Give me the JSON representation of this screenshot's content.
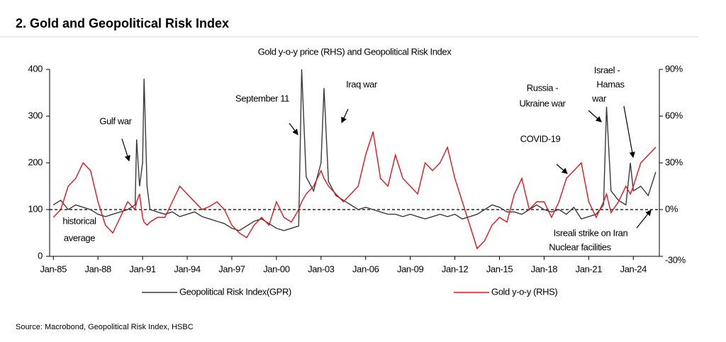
{
  "chart_data": {
    "type": "line",
    "heading": "2. Gold and Geopolitical Risk Index",
    "title": "Gold y-o-y price (RHS) and Geopolitical Risk Index",
    "source": "Source: Macrobond, Geopolitical Risk Index, HSBC",
    "x": [
      1985,
      1985.5,
      1986,
      1986.5,
      1987,
      1987.5,
      1988,
      1988.5,
      1989,
      1989.5,
      1990,
      1990.5,
      1990.6,
      1990.8,
      1991.0,
      1991.1,
      1991.3,
      1991.5,
      1992,
      1992.5,
      1993,
      1993.5,
      1994,
      1994.5,
      1995,
      1995.5,
      1996,
      1996.5,
      1997,
      1997.5,
      1998,
      1998.5,
      1999,
      1999.5,
      2000,
      2000.5,
      2001,
      2001.5,
      2001.7,
      2002,
      2002.5,
      2003,
      2003.2,
      2003.5,
      2004,
      2004.5,
      2005,
      2005.5,
      2006,
      2006.5,
      2007,
      2007.5,
      2008,
      2008.5,
      2009,
      2009.5,
      2010,
      2010.5,
      2011,
      2011.5,
      2012,
      2012.5,
      2013,
      2013.5,
      2014,
      2014.5,
      2015,
      2015.5,
      2016,
      2016.5,
      2017,
      2017.5,
      2018,
      2018.5,
      2019,
      2019.5,
      2020,
      2020.5,
      2021,
      2021.5,
      2022,
      2022.2,
      2022.5,
      2023,
      2023.5,
      2023.8,
      2024,
      2024.5,
      2025,
      2025.5
    ],
    "series": [
      {
        "name": "Geopolitical Risk Index(GPR)",
        "color": "#3a3a3a",
        "values": [
          110,
          120,
          100,
          110,
          105,
          100,
          90,
          85,
          90,
          95,
          100,
          110,
          250,
          150,
          200,
          380,
          150,
          100,
          95,
          90,
          95,
          85,
          90,
          95,
          85,
          80,
          75,
          70,
          60,
          55,
          65,
          75,
          80,
          70,
          60,
          55,
          60,
          65,
          400,
          170,
          140,
          200,
          360,
          160,
          130,
          120,
          110,
          100,
          105,
          100,
          95,
          90,
          90,
          85,
          90,
          85,
          80,
          85,
          90,
          85,
          90,
          80,
          85,
          90,
          100,
          110,
          105,
          95,
          95,
          90,
          100,
          110,
          100,
          95,
          100,
          90,
          105,
          80,
          85,
          90,
          110,
          320,
          140,
          120,
          110,
          200,
          140,
          150,
          130,
          180
        ]
      },
      {
        "name": "Gold y-o-y (RHS)",
        "color": "#e8141e",
        "axis": "y2",
        "values": [
          -5,
          0,
          15,
          20,
          30,
          25,
          5,
          -10,
          -15,
          -5,
          5,
          0,
          5,
          10,
          -5,
          -8,
          -10,
          -8,
          -5,
          -5,
          5,
          15,
          10,
          5,
          0,
          2,
          5,
          0,
          -10,
          -15,
          -18,
          -10,
          -5,
          -10,
          5,
          -5,
          -8,
          0,
          5,
          10,
          15,
          25,
          20,
          15,
          10,
          5,
          10,
          15,
          35,
          50,
          20,
          15,
          35,
          20,
          15,
          10,
          30,
          25,
          30,
          40,
          20,
          5,
          -10,
          -25,
          -20,
          -10,
          -5,
          -8,
          10,
          20,
          0,
          5,
          5,
          -5,
          5,
          20,
          25,
          30,
          5,
          -5,
          5,
          10,
          -2,
          5,
          15,
          10,
          15,
          30,
          35,
          40
        ]
      }
    ],
    "xlim": [
      1984.75,
      2025.75
    ],
    "xticks": [
      {
        "value": 1985,
        "label": "Jan-85"
      },
      {
        "value": 1988,
        "label": "Jan-88"
      },
      {
        "value": 1991,
        "label": "Jan-91"
      },
      {
        "value": 1994,
        "label": "Jan-94"
      },
      {
        "value": 1997,
        "label": "Jan-97"
      },
      {
        "value": 2000,
        "label": "Jan-00"
      },
      {
        "value": 2003,
        "label": "Jan-03"
      },
      {
        "value": 2006,
        "label": "Jan-06"
      },
      {
        "value": 2009,
        "label": "Jan-09"
      },
      {
        "value": 2012,
        "label": "Jan-12"
      },
      {
        "value": 2015,
        "label": "Jan-15"
      },
      {
        "value": 2018,
        "label": "Jan-18"
      },
      {
        "value": 2021,
        "label": "Jan-21"
      },
      {
        "value": 2024,
        "label": "Jan-24"
      }
    ],
    "ylim": [
      0,
      400
    ],
    "yticks": [
      0,
      100,
      200,
      300,
      400
    ],
    "y2lim": [
      -30,
      90
    ],
    "y2ticks": [
      {
        "value": -30,
        "label": "-30%"
      },
      {
        "value": 0,
        "label": "0%"
      },
      {
        "value": 30,
        "label": "30%"
      },
      {
        "value": 60,
        "label": "60%"
      },
      {
        "value": 90,
        "label": "90%"
      }
    ],
    "reference": {
      "value": 100,
      "label": [
        "historical",
        "average"
      ]
    },
    "annotations": {
      "gulf": "Gulf war",
      "sept11": "September 11",
      "iraq": "Iraq war",
      "russia": [
        "Russia -",
        "Ukraine war"
      ],
      "israel": [
        "Israel -",
        "Hamas",
        "war"
      ],
      "covid": "COVID-19",
      "iran": [
        "Isreali strike on Iran",
        "Nuclear facilities"
      ]
    }
  }
}
